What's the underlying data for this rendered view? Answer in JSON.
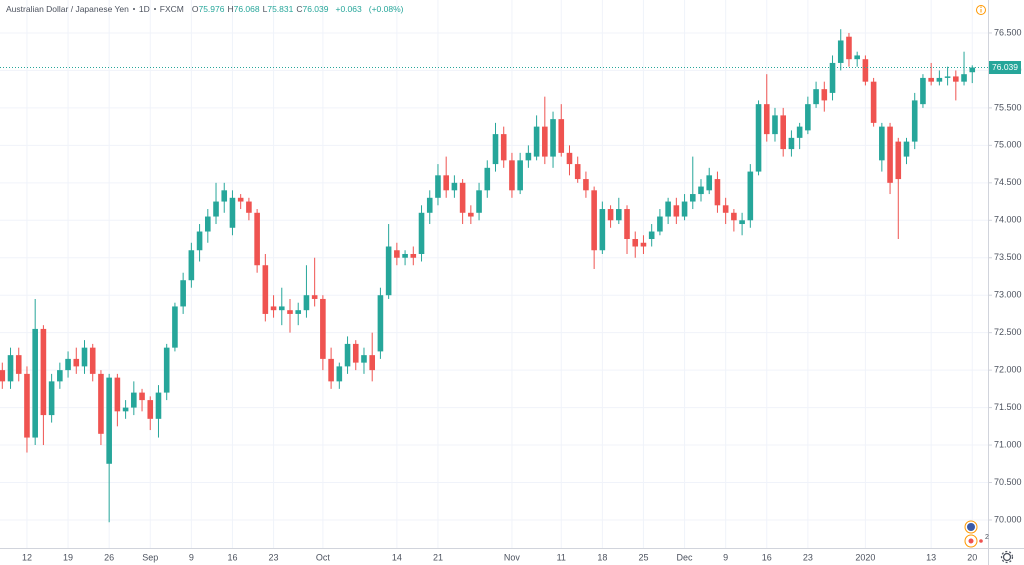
{
  "header": {
    "symbol": "Australian Dollar / Japanese Yen",
    "interval": "1D",
    "source": "FXCM",
    "ohlc": [
      {
        "key": "O",
        "value": "75.976"
      },
      {
        "key": "H",
        "value": "76.068"
      },
      {
        "key": "L",
        "value": "75.831"
      },
      {
        "key": "C",
        "value": "76.039"
      }
    ],
    "change": "+0.063",
    "change_pct": "(+0.08%)",
    "events_badge": "2"
  },
  "chart_data": {
    "type": "candlestick",
    "up_color": "#26a69a",
    "down_color": "#ef5350",
    "grid": true,
    "ylim": [
      69.626,
      76.94
    ],
    "yticks": [
      {
        "value": 70,
        "label": "70.000"
      },
      {
        "value": 70.5,
        "label": "70.500"
      },
      {
        "value": 71,
        "label": "71.000"
      },
      {
        "value": 71.5,
        "label": "71.500"
      },
      {
        "value": 72,
        "label": "72.000"
      },
      {
        "value": 72.5,
        "label": "72.500"
      },
      {
        "value": 73,
        "label": "73.000"
      },
      {
        "value": 73.5,
        "label": "73.500"
      },
      {
        "value": 74,
        "label": "74.000"
      },
      {
        "value": 74.5,
        "label": "74.500"
      },
      {
        "value": 75,
        "label": "75.000"
      },
      {
        "value": 75.5,
        "label": "75.500"
      },
      {
        "value": 76,
        "label": "76.000"
      },
      {
        "value": 76.5,
        "label": "76.500"
      }
    ],
    "last_price": {
      "value": 76.039,
      "label": "76.039"
    },
    "categories": [
      null,
      null,
      null,
      "12",
      null,
      null,
      null,
      null,
      "19",
      null,
      null,
      null,
      null,
      "26",
      null,
      null,
      null,
      null,
      "Sep",
      null,
      null,
      null,
      null,
      "9",
      null,
      null,
      null,
      null,
      "16",
      null,
      null,
      null,
      null,
      "23",
      null,
      null,
      null,
      null,
      null,
      "Oct",
      null,
      null,
      null,
      null,
      null,
      null,
      null,
      null,
      "14",
      null,
      null,
      null,
      null,
      "21",
      null,
      null,
      null,
      null,
      null,
      null,
      null,
      null,
      "Nov",
      null,
      null,
      null,
      null,
      null,
      "11",
      null,
      null,
      null,
      null,
      "18",
      null,
      null,
      null,
      null,
      "25",
      null,
      null,
      null,
      null,
      "Dec",
      null,
      null,
      null,
      null,
      "9",
      null,
      null,
      null,
      null,
      "16",
      null,
      null,
      null,
      null,
      "23",
      null,
      null,
      null,
      null,
      null,
      null,
      "2020",
      null,
      null,
      null,
      null,
      null,
      null,
      null,
      "13",
      null,
      null,
      null,
      null,
      "20"
    ],
    "candles": [
      [
        72.0,
        72.1,
        71.75,
        71.85
      ],
      [
        71.85,
        72.3,
        71.75,
        72.2
      ],
      [
        72.2,
        72.3,
        71.85,
        71.95
      ],
      [
        71.95,
        72.05,
        70.9,
        71.1
      ],
      [
        71.1,
        72.95,
        71.0,
        72.55
      ],
      [
        72.55,
        72.6,
        71.0,
        71.4
      ],
      [
        71.4,
        71.95,
        71.3,
        71.85
      ],
      [
        71.85,
        72.1,
        71.75,
        72.0
      ],
      [
        72.0,
        72.25,
        71.9,
        72.15
      ],
      [
        72.15,
        72.3,
        71.95,
        72.05
      ],
      [
        72.05,
        72.4,
        71.95,
        72.3
      ],
      [
        72.3,
        72.35,
        71.85,
        71.95
      ],
      [
        71.95,
        72.0,
        71.0,
        71.15
      ],
      [
        70.75,
        71.95,
        69.97,
        71.9
      ],
      [
        71.9,
        71.95,
        71.25,
        71.45
      ],
      [
        71.45,
        71.6,
        71.35,
        71.5
      ],
      [
        71.5,
        71.85,
        71.4,
        71.7
      ],
      [
        71.7,
        71.75,
        71.45,
        71.6
      ],
      [
        71.6,
        71.65,
        71.2,
        71.35
      ],
      [
        71.35,
        71.8,
        71.1,
        71.7
      ],
      [
        71.7,
        72.35,
        71.6,
        72.3
      ],
      [
        72.3,
        72.9,
        72.25,
        72.85
      ],
      [
        72.85,
        73.3,
        72.75,
        73.2
      ],
      [
        73.2,
        73.7,
        73.1,
        73.6
      ],
      [
        73.6,
        73.95,
        73.45,
        73.85
      ],
      [
        73.85,
        74.15,
        73.7,
        74.05
      ],
      [
        74.05,
        74.5,
        73.95,
        74.25
      ],
      [
        74.25,
        74.5,
        74.1,
        74.4
      ],
      [
        73.9,
        74.4,
        73.8,
        74.3
      ],
      [
        74.3,
        74.35,
        74.15,
        74.25
      ],
      [
        74.25,
        74.3,
        74.0,
        74.1
      ],
      [
        74.1,
        74.15,
        73.3,
        73.4
      ],
      [
        73.4,
        73.55,
        72.65,
        72.75
      ],
      [
        72.85,
        73.0,
        72.7,
        72.8
      ],
      [
        72.8,
        73.1,
        72.6,
        72.85
      ],
      [
        72.8,
        72.95,
        72.5,
        72.75
      ],
      [
        72.75,
        72.9,
        72.6,
        72.8
      ],
      [
        72.8,
        73.4,
        72.7,
        73.0
      ],
      [
        73.0,
        73.5,
        72.85,
        72.95
      ],
      [
        72.95,
        73.0,
        72.0,
        72.15
      ],
      [
        72.15,
        72.3,
        71.75,
        71.85
      ],
      [
        71.85,
        72.1,
        71.75,
        72.05
      ],
      [
        72.05,
        72.45,
        71.95,
        72.35
      ],
      [
        72.35,
        72.4,
        72.0,
        72.1
      ],
      [
        72.1,
        72.3,
        71.95,
        72.2
      ],
      [
        72.2,
        72.5,
        71.85,
        72.0
      ],
      [
        72.25,
        73.1,
        72.15,
        73.0
      ],
      [
        73.0,
        73.95,
        72.95,
        73.65
      ],
      [
        73.6,
        73.7,
        73.4,
        73.5
      ],
      [
        73.5,
        73.6,
        73.4,
        73.55
      ],
      [
        73.55,
        73.65,
        73.4,
        73.5
      ],
      [
        73.55,
        74.2,
        73.45,
        74.1
      ],
      [
        74.1,
        74.4,
        73.95,
        74.3
      ],
      [
        74.3,
        74.75,
        74.2,
        74.6
      ],
      [
        74.6,
        74.85,
        74.3,
        74.4
      ],
      [
        74.4,
        74.6,
        74.3,
        74.5
      ],
      [
        74.5,
        74.55,
        73.95,
        74.1
      ],
      [
        74.1,
        74.2,
        73.95,
        74.05
      ],
      [
        74.1,
        74.5,
        74.0,
        74.4
      ],
      [
        74.4,
        74.8,
        74.3,
        74.7
      ],
      [
        74.75,
        75.3,
        74.65,
        75.15
      ],
      [
        75.15,
        75.25,
        74.7,
        74.8
      ],
      [
        74.8,
        74.9,
        74.3,
        74.4
      ],
      [
        74.4,
        74.9,
        74.35,
        74.8
      ],
      [
        74.8,
        75.0,
        74.7,
        74.9
      ],
      [
        74.85,
        75.4,
        74.8,
        75.25
      ],
      [
        75.25,
        75.65,
        74.75,
        74.85
      ],
      [
        74.85,
        75.45,
        74.7,
        75.35
      ],
      [
        75.35,
        75.55,
        74.85,
        74.9
      ],
      [
        74.9,
        75.0,
        74.6,
        74.75
      ],
      [
        74.75,
        74.85,
        74.5,
        74.55
      ],
      [
        74.55,
        74.65,
        74.3,
        74.4
      ],
      [
        74.4,
        74.45,
        73.35,
        73.6
      ],
      [
        73.6,
        74.25,
        73.55,
        74.15
      ],
      [
        74.15,
        74.2,
        73.9,
        74.0
      ],
      [
        74.0,
        74.3,
        73.95,
        74.15
      ],
      [
        74.15,
        74.2,
        73.55,
        73.75
      ],
      [
        73.75,
        73.85,
        73.5,
        73.65
      ],
      [
        73.7,
        73.8,
        73.55,
        73.65
      ],
      [
        73.75,
        73.95,
        73.65,
        73.85
      ],
      [
        73.85,
        74.15,
        73.8,
        74.05
      ],
      [
        74.05,
        74.3,
        73.95,
        74.25
      ],
      [
        74.2,
        74.3,
        73.95,
        74.05
      ],
      [
        74.05,
        74.35,
        74.0,
        74.25
      ],
      [
        74.25,
        74.85,
        74.15,
        74.35
      ],
      [
        74.35,
        74.55,
        74.25,
        74.45
      ],
      [
        74.4,
        74.7,
        74.35,
        74.6
      ],
      [
        74.55,
        74.65,
        74.1,
        74.2
      ],
      [
        74.2,
        74.3,
        73.95,
        74.1
      ],
      [
        74.1,
        74.15,
        73.85,
        74.0
      ],
      [
        73.95,
        74.1,
        73.8,
        74.0
      ],
      [
        74.0,
        74.75,
        73.9,
        74.65
      ],
      [
        74.65,
        75.6,
        74.6,
        75.55
      ],
      [
        75.55,
        75.95,
        75.05,
        75.15
      ],
      [
        75.15,
        75.5,
        75.05,
        75.4
      ],
      [
        75.4,
        75.5,
        74.85,
        74.95
      ],
      [
        74.95,
        75.2,
        74.85,
        75.1
      ],
      [
        75.1,
        75.3,
        74.95,
        75.25
      ],
      [
        75.2,
        75.65,
        75.15,
        75.55
      ],
      [
        75.55,
        75.85,
        75.5,
        75.75
      ],
      [
        75.75,
        75.85,
        75.45,
        75.6
      ],
      [
        75.7,
        76.2,
        75.6,
        76.1
      ],
      [
        76.1,
        76.55,
        76.0,
        76.4
      ],
      [
        76.45,
        76.5,
        76.05,
        76.15
      ],
      [
        76.15,
        76.25,
        76.05,
        76.2
      ],
      [
        76.15,
        76.2,
        75.8,
        75.85
      ],
      [
        75.85,
        75.9,
        75.25,
        75.3
      ],
      [
        74.8,
        75.3,
        74.65,
        75.25
      ],
      [
        75.25,
        75.3,
        74.35,
        74.5
      ],
      [
        75.05,
        75.1,
        73.75,
        74.55
      ],
      [
        74.85,
        75.1,
        74.75,
        75.05
      ],
      [
        75.05,
        75.7,
        74.95,
        75.6
      ],
      [
        75.55,
        75.95,
        75.5,
        75.9
      ],
      [
        75.9,
        76.1,
        75.8,
        75.85
      ],
      [
        75.85,
        76.0,
        75.8,
        75.9
      ],
      [
        75.9,
        76.05,
        75.8,
        75.92
      ],
      [
        75.92,
        76.0,
        75.6,
        75.85
      ],
      [
        75.85,
        76.25,
        75.8,
        75.95
      ],
      [
        75.976,
        76.068,
        75.831,
        76.039
      ]
    ]
  }
}
